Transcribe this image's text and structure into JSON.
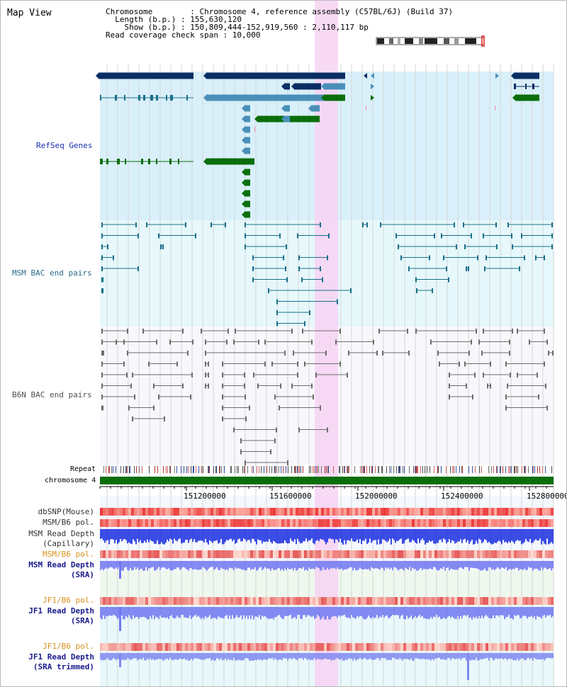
{
  "title": "Map View",
  "info": {
    "lines": [
      "Chromosome        : Chromosome 4, reference assembly (C57BL/6J) (Build 37)",
      "  Length (b.p.) : 155,630,120",
      "    Show (b.p.) : 150,809,444-152,919,560 : 2,110,117 bp",
      "Read coverage check span : 10,000"
    ]
  },
  "tracks": {
    "refseq": {
      "label": "RefSeq Genes"
    },
    "msm_bac": {
      "label": "MSM BAC end pairs"
    },
    "b6n_bac": {
      "label": "B6N BAC end pairs"
    },
    "repeat": {
      "label": "Repeat"
    },
    "chromosome": {
      "label": "chromosome 4"
    },
    "dbsnp": {
      "label": "dbSNP(Mouse)"
    },
    "msm_b6_pol_1": {
      "label": "MSM/B6 pol."
    },
    "msm_read_depth_cap": {
      "label1": "MSM Read Depth",
      "label2": "(Capillary)"
    },
    "msm_b6_pol_2": {
      "label": "MSM/B6 pol."
    },
    "msm_read_depth_sra": {
      "label1": "MSM Read Depth",
      "label2": "(SRA)"
    },
    "jf1_b6_pol_1": {
      "label": "JF1/B6 pol."
    },
    "jf1_read_depth_sra": {
      "label1": "JF1 Read Depth",
      "label2": "(SRA)"
    },
    "jf1_b6_pol_2": {
      "label": "JF1/B6 pol."
    },
    "jf1_read_depth_trim": {
      "label1": "JF1 Read Depth",
      "label2": "(SRA trimmed)"
    }
  },
  "axis": {
    "ticks": [
      "151200000",
      "151600000",
      "152000000",
      "152400000",
      "152800000"
    ]
  },
  "colors": {
    "refseq_bg": "#d9f0fa",
    "bac_bg": "#e6f8fb",
    "highlight": "#f7d4f3",
    "navy": "#0a2d64",
    "steel": "#4a8fb8",
    "green": "#0a6e0a",
    "bac_line": "#1a6f8a",
    "b6n_line": "#6d6d6d",
    "label_blue": "#1a2fae",
    "label_teal": "#2a6b8a",
    "label_orange": "#d8901a",
    "label_navy": "#1a1a8c"
  }
}
